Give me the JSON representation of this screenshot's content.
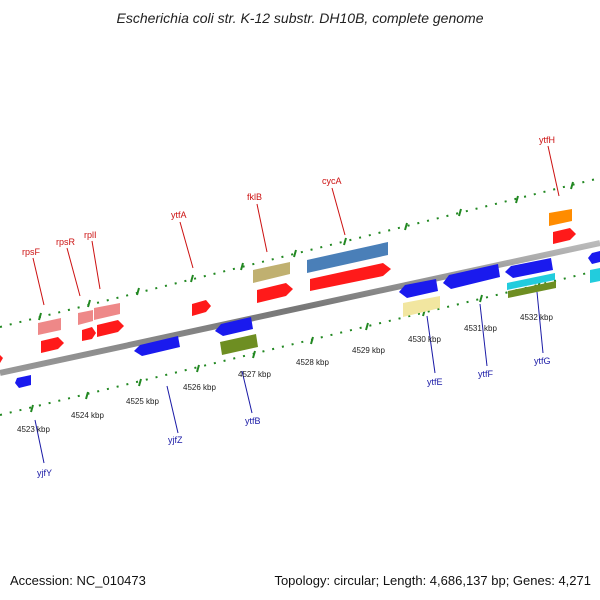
{
  "title": "Escherichia coli str. K-12 substr. DH10B, complete genome",
  "footer": {
    "accession": "Accession: NC_010473",
    "summary": "Topology: circular; Length: 4,686,137 bp; Genes: 4,271"
  },
  "scale_labels": [
    "4523 kbp",
    "4524 kbp",
    "4525 kbp",
    "4526 kbp",
    "4527 kbp",
    "4528 kbp",
    "4529 kbp",
    "4530 kbp",
    "4531 kbp",
    "4532 kbp"
  ],
  "genes_top": [
    {
      "name": "rpsF",
      "color": "#ee3333"
    },
    {
      "name": "rpsR",
      "color": "#ee3333"
    },
    {
      "name": "rplI",
      "color": "#ee3333"
    },
    {
      "name": "ytfA",
      "color": "#ee3333"
    },
    {
      "name": "fklB",
      "color": "#ee3333"
    },
    {
      "name": "cycA",
      "color": "#ee3333"
    },
    {
      "name": "ytfH",
      "color": "#ee3333"
    }
  ],
  "genes_bottom": [
    {
      "name": "yjfY",
      "color": "#2222aa"
    },
    {
      "name": "yjfZ",
      "color": "#2222aa"
    },
    {
      "name": "ytfB",
      "color": "#2222aa"
    },
    {
      "name": "ytfE",
      "color": "#2222aa"
    },
    {
      "name": "ytfF",
      "color": "#2222aa"
    },
    {
      "name": "ytfG",
      "color": "#2222aa"
    }
  ],
  "colors": {
    "forward_cds": "#ff1a1a",
    "reverse_cds": "#1a1aee",
    "rrna_pink": "#ee8888",
    "olive": "#c0b070",
    "dark_olive": "#6e8e22",
    "steel_blue": "#4a7fb8",
    "orange": "#ff8c00",
    "cyan": "#22ccdd",
    "pale_yellow": "#f2e6a0",
    "backbone": "#888888",
    "ticks": "#228822"
  }
}
